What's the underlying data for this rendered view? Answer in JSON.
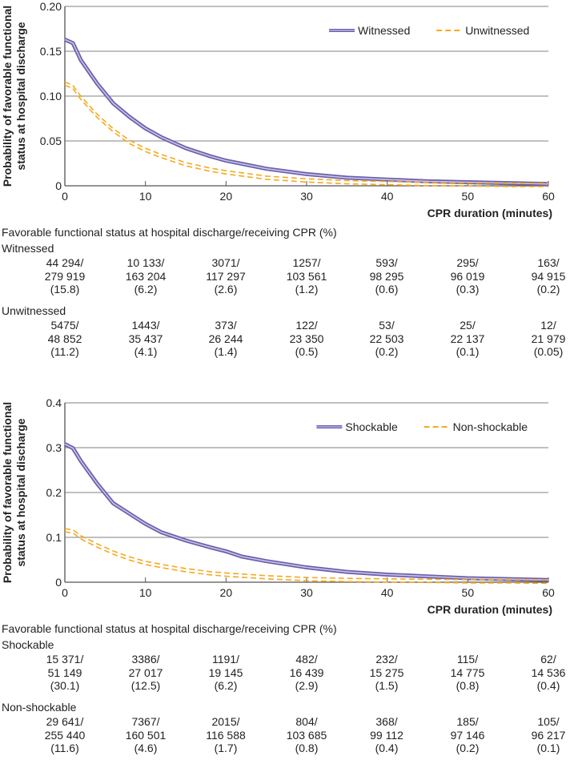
{
  "colors": {
    "purple": "#6a5fad",
    "purple_light": "#c9c3e6",
    "orange": "#f5a91f",
    "grid": "#9a9a9a",
    "axis": "#555555"
  },
  "chart_data": [
    {
      "type": "line",
      "ylabel": "Probability of favorable functional status at hospital discharge",
      "xlabel": "CPR duration (minutes)",
      "xlim": [
        0,
        60
      ],
      "ylim": [
        0,
        0.2
      ],
      "xticks": [
        0,
        10,
        20,
        30,
        40,
        50,
        60
      ],
      "xtick_labels": [
        "0",
        "10",
        "20",
        "30",
        "40",
        "50",
        "60"
      ],
      "yticks": [
        0,
        0.05,
        0.1,
        0.15,
        0.2
      ],
      "ytick_labels": [
        "0",
        "0.05",
        "0.10",
        "0.15",
        "0.20"
      ],
      "legend_position": "top-right",
      "series": [
        {
          "name": "Witnessed",
          "style": "solid",
          "color": "#6a5fad",
          "x": [
            0,
            1,
            2,
            4,
            6,
            8,
            10,
            12,
            15,
            18,
            20,
            25,
            30,
            35,
            40,
            45,
            50,
            55,
            60
          ],
          "y": [
            0.163,
            0.159,
            0.14,
            0.114,
            0.092,
            0.077,
            0.064,
            0.054,
            0.042,
            0.033,
            0.028,
            0.019,
            0.013,
            0.009,
            0.007,
            0.005,
            0.004,
            0.003,
            0.002
          ]
        },
        {
          "name": "Unwitnessed",
          "style": "dashed",
          "color": "#f5a91f",
          "x": [
            0,
            1,
            2,
            4,
            6,
            8,
            10,
            12,
            15,
            18,
            20,
            25,
            30,
            35,
            40,
            45,
            50,
            55,
            60
          ],
          "y": [
            0.114,
            0.11,
            0.098,
            0.078,
            0.062,
            0.049,
            0.04,
            0.033,
            0.024,
            0.018,
            0.015,
            0.009,
            0.006,
            0.004,
            0.003,
            0.002,
            0.0015,
            0.001,
            0.001
          ]
        }
      ]
    },
    {
      "type": "line",
      "ylabel": "Probability of favorable functional status at hospital discharge",
      "xlabel": "CPR duration (minutes)",
      "xlim": [
        0,
        60
      ],
      "ylim": [
        0,
        0.4
      ],
      "xticks": [
        0,
        10,
        20,
        30,
        40,
        50,
        60
      ],
      "xtick_labels": [
        "0",
        "10",
        "20",
        "30",
        "40",
        "50",
        "60"
      ],
      "yticks": [
        0,
        0.1,
        0.2,
        0.3,
        0.4
      ],
      "ytick_labels": [
        "0",
        "0.1",
        "0.2",
        "0.3",
        "0.4"
      ],
      "legend_position": "top-right",
      "series": [
        {
          "name": "Shockable",
          "style": "solid",
          "color": "#6a5fad",
          "x": [
            0,
            1,
            2,
            4,
            6,
            8,
            10,
            12,
            15,
            18,
            20,
            22,
            25,
            30,
            35,
            40,
            45,
            50,
            55,
            60
          ],
          "y": [
            0.308,
            0.299,
            0.27,
            0.22,
            0.176,
            0.153,
            0.13,
            0.111,
            0.093,
            0.078,
            0.069,
            0.057,
            0.047,
            0.033,
            0.023,
            0.017,
            0.013,
            0.009,
            0.007,
            0.005
          ]
        },
        {
          "name": "Non-shockable",
          "style": "dashed",
          "color": "#f5a91f",
          "x": [
            0,
            1,
            2,
            4,
            6,
            8,
            10,
            12,
            15,
            18,
            20,
            25,
            30,
            35,
            40,
            45,
            50,
            55,
            60
          ],
          "y": [
            0.116,
            0.113,
            0.1,
            0.082,
            0.066,
            0.053,
            0.043,
            0.036,
            0.027,
            0.02,
            0.017,
            0.011,
            0.007,
            0.005,
            0.004,
            0.003,
            0.002,
            0.002,
            0.001
          ]
        }
      ]
    }
  ],
  "table_a": {
    "caption": "Favorable functional status at hospital discharge/receiving CPR (%)",
    "groups": [
      {
        "label": "Witnessed",
        "cells": [
          [
            "44 294/",
            "279 919",
            "(15.8)"
          ],
          [
            "10 133/",
            "163 204",
            "(6.2)"
          ],
          [
            "3071/",
            "117 297",
            "(2.6)"
          ],
          [
            "1257/",
            "103 561",
            "(1.2)"
          ],
          [
            "593/",
            "98 295",
            "(0.6)"
          ],
          [
            "295/",
            "96 019",
            "(0.3)"
          ],
          [
            "163/",
            "94 915",
            "(0.2)"
          ]
        ]
      },
      {
        "label": "Unwitnessed",
        "cells": [
          [
            "5475/",
            "48 852",
            "(11.2)"
          ],
          [
            "1443/",
            "35 437",
            "(4.1)"
          ],
          [
            "373/",
            "26 244",
            "(1.4)"
          ],
          [
            "122/",
            "23 350",
            "(0.5)"
          ],
          [
            "53/",
            "22 503",
            "(0.2)"
          ],
          [
            "25/",
            "22 137",
            "(0.1)"
          ],
          [
            "12/",
            "21 979",
            "(0.05)"
          ]
        ]
      }
    ]
  },
  "table_b": {
    "caption": "Favorable functional status at hospital discharge/receiving CPR (%)",
    "groups": [
      {
        "label": "Shockable",
        "cells": [
          [
            "15 371/",
            "51 149",
            "(30.1)"
          ],
          [
            "3386/",
            "27 017",
            "(12.5)"
          ],
          [
            "1191/",
            "19 145",
            "(6.2)"
          ],
          [
            "482/",
            "16 439",
            "(2.9)"
          ],
          [
            "232/",
            "15 275",
            "(1.5)"
          ],
          [
            "115/",
            "14 775",
            "(0.8)"
          ],
          [
            "62/",
            "14 536",
            "(0.4)"
          ]
        ]
      },
      {
        "label": "Non-shockable",
        "cells": [
          [
            "29 641/",
            "255 440",
            "(11.6)"
          ],
          [
            "7367/",
            "160 501",
            "(4.6)"
          ],
          [
            "2015/",
            "116 588",
            "(1.7)"
          ],
          [
            "804/",
            "103 685",
            "(0.8)"
          ],
          [
            "368/",
            "99 112",
            "(0.4)"
          ],
          [
            "185/",
            "97 146",
            "(0.2)"
          ],
          [
            "105/",
            "96 217",
            "(0.1)"
          ]
        ]
      }
    ]
  }
}
